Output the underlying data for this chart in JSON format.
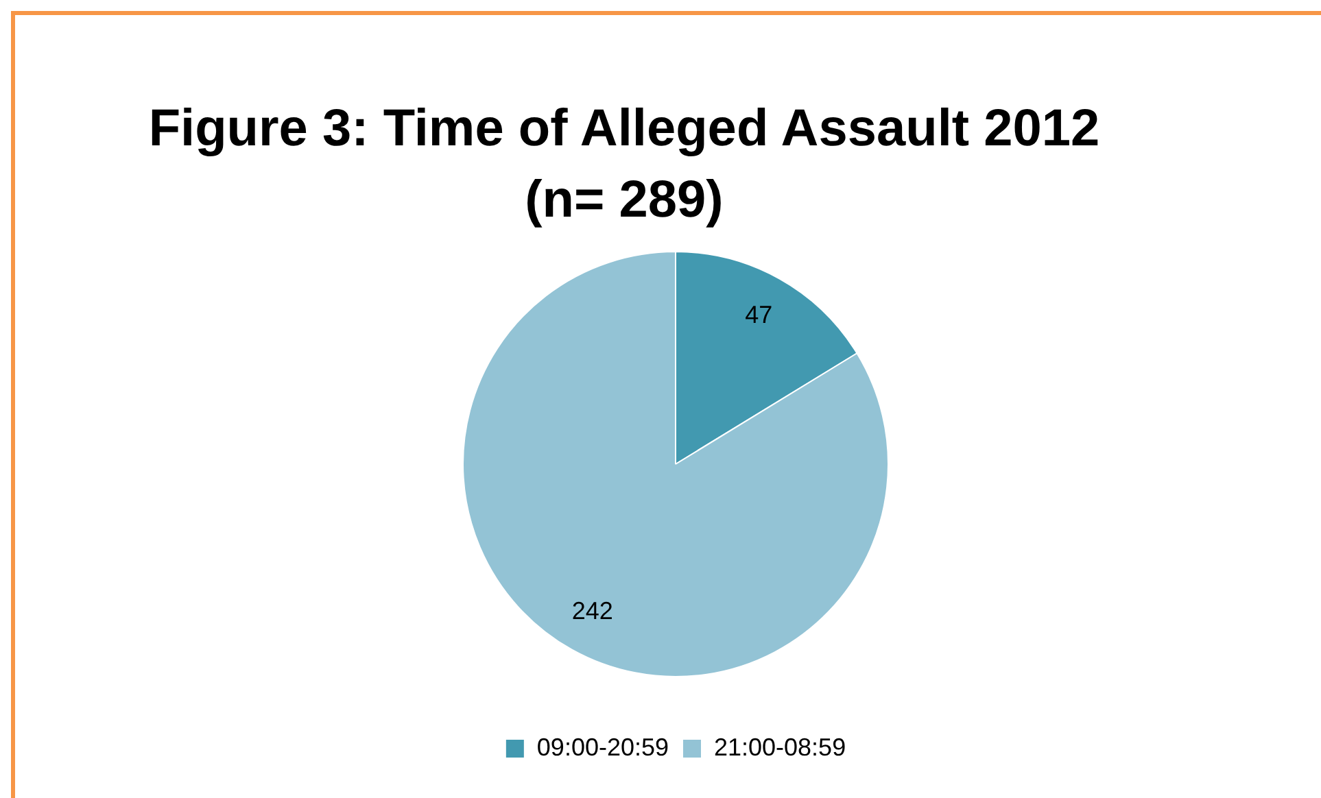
{
  "chart_data": {
    "type": "pie",
    "title": "Figure 3: Time of Alleged Assault 2012 (n= 289)",
    "categories": [
      "09:00-20:59",
      "21:00-08:59"
    ],
    "values": [
      47,
      242
    ],
    "colors": [
      "#4299b0",
      "#93c3d5"
    ],
    "data_labels": true,
    "legend": "bottom"
  }
}
